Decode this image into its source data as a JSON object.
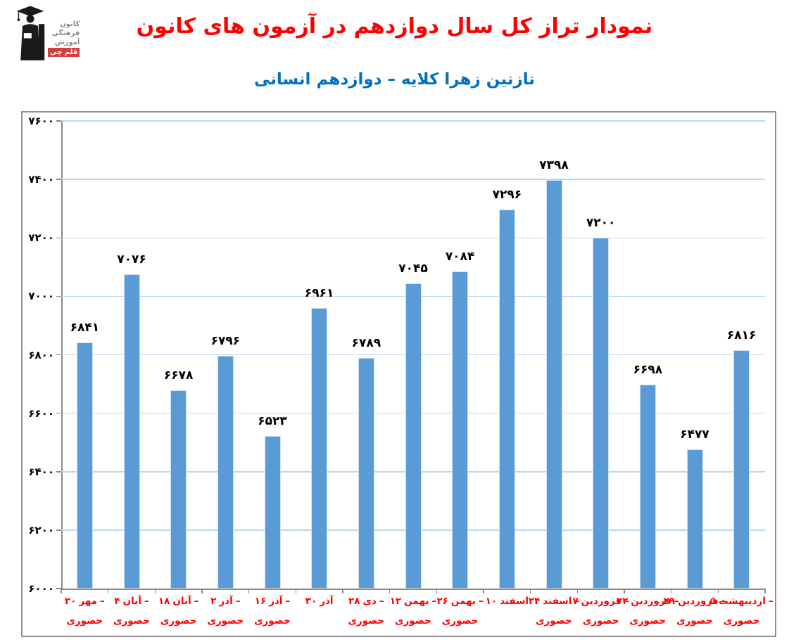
{
  "header": {
    "title": "نمودار تراز کل سال دوازدهم در آزمون های کانون",
    "subtitle": "نازنین زهرا کلایه – دوازدهم انسانی"
  },
  "logo": {
    "lines": [
      "کانون",
      "فرهنگی",
      "آموزش"
    ],
    "badge": "قلم چی"
  },
  "colors": {
    "title": "#FF0000",
    "subtitle": "#0070C0",
    "bar": "#5B9BD5",
    "gridline": "#BDD7EE",
    "axis": "#898989",
    "category_label": "#FF0000",
    "value_label": "#000000"
  },
  "chart_data": {
    "type": "bar",
    "title": "نمودار تراز کل سال دوازدهم در آزمون های کانون",
    "subtitle": "نازنین زهرا کلایه – دوازدهم انسانی",
    "xlabel": "",
    "ylabel": "",
    "ylim": [
      6000,
      7600
    ],
    "grid": true,
    "legend": false,
    "y_ticks": [
      {
        "value": 6000,
        "label_fa": "۶۰۰۰"
      },
      {
        "value": 6200,
        "label_fa": "۶۲۰۰"
      },
      {
        "value": 6400,
        "label_fa": "۶۴۰۰"
      },
      {
        "value": 6600,
        "label_fa": "۶۶۰۰"
      },
      {
        "value": 6800,
        "label_fa": "۶۸۰۰"
      },
      {
        "value": 7000,
        "label_fa": "۷۰۰۰"
      },
      {
        "value": 7200,
        "label_fa": "۷۲۰۰"
      },
      {
        "value": 7400,
        "label_fa": "۷۴۰۰"
      },
      {
        "value": 7600,
        "label_fa": "۷۶۰۰"
      }
    ],
    "categories": [
      "۲۰ مهر – حضوری",
      "۴ آبان – حضوری",
      "۱۸ آبان – حضوری",
      "۲ آذر – حضوری",
      "۱۶ آذر – حضوری",
      "۳۰ آذر",
      "۲۸ دی – حضوری",
      "۱۲ بهمن – حضوری",
      "۲۶ بهمن – حضوری",
      "۱۰ اسفند",
      "۲۴ اسفند – حضوری",
      "۷ فروردین – حضوری",
      "۲۲ فروردین – حضوری",
      "۲۹ فروردین – حضوری",
      "۵ اردیبهشت – حضوری"
    ],
    "values": [
      6841,
      7076,
      6678,
      6796,
      6523,
      6961,
      6789,
      7045,
      7084,
      7296,
      7398,
      7200,
      6698,
      6477,
      6816
    ],
    "points": [
      {
        "date_num": "۲۰",
        "month": "مهر",
        "dash": "–",
        "mode": "حضوری",
        "value": 6841,
        "value_fa": "۶۸۴۱"
      },
      {
        "date_num": "۴",
        "month": "آبان",
        "dash": "–",
        "mode": "حضوری",
        "value": 7076,
        "value_fa": "۷۰۷۶"
      },
      {
        "date_num": "۱۸",
        "month": "آبان",
        "dash": "–",
        "mode": "حضوری",
        "value": 6678,
        "value_fa": "۶۶۷۸"
      },
      {
        "date_num": "۲",
        "month": "آذر",
        "dash": "–",
        "mode": "حضوری",
        "value": 6796,
        "value_fa": "۶۷۹۶"
      },
      {
        "date_num": "۱۶",
        "month": "آذر",
        "dash": "–",
        "mode": "حضوری",
        "value": 6523,
        "value_fa": "۶۵۲۳"
      },
      {
        "date_num": "۳۰",
        "month": "آذر",
        "dash": "",
        "mode": "",
        "value": 6961,
        "value_fa": "۶۹۶۱"
      },
      {
        "date_num": "۲۸",
        "month": "دی",
        "dash": "–",
        "mode": "حضوری",
        "value": 6789,
        "value_fa": "۶۷۸۹"
      },
      {
        "date_num": "۱۲",
        "month": "بهمن",
        "dash": "–",
        "mode": "حضوری",
        "value": 7045,
        "value_fa": "۷۰۴۵"
      },
      {
        "date_num": "۲۶",
        "month": "بهمن",
        "dash": "–",
        "mode": "حضوری",
        "value": 7084,
        "value_fa": "۷۰۸۴"
      },
      {
        "date_num": "۱۰",
        "month": "اسفند",
        "dash": "",
        "mode": "",
        "value": 7296,
        "value_fa": "۷۲۹۶"
      },
      {
        "date_num": "۲۴",
        "month": "اسفند",
        "dash": "–",
        "mode": "حضوری",
        "value": 7398,
        "value_fa": "۷۳۹۸"
      },
      {
        "date_num": "۷",
        "month": "فروردین",
        "dash": "–",
        "mode": "حضوری",
        "value": 7200,
        "value_fa": "۷۲۰۰"
      },
      {
        "date_num": "۲۲",
        "month": "فروردین",
        "dash": "–",
        "mode": "حضوری",
        "value": 6698,
        "value_fa": "۶۶۹۸"
      },
      {
        "date_num": "۲۹",
        "month": "فروردین",
        "dash": "–",
        "mode": "حضوری",
        "value": 6477,
        "value_fa": "۶۴۷۷"
      },
      {
        "date_num": "۵",
        "month": "اردیبهشت",
        "dash": "–",
        "mode": "حضوری",
        "value": 6816,
        "value_fa": "۶۸۱۶"
      }
    ]
  }
}
